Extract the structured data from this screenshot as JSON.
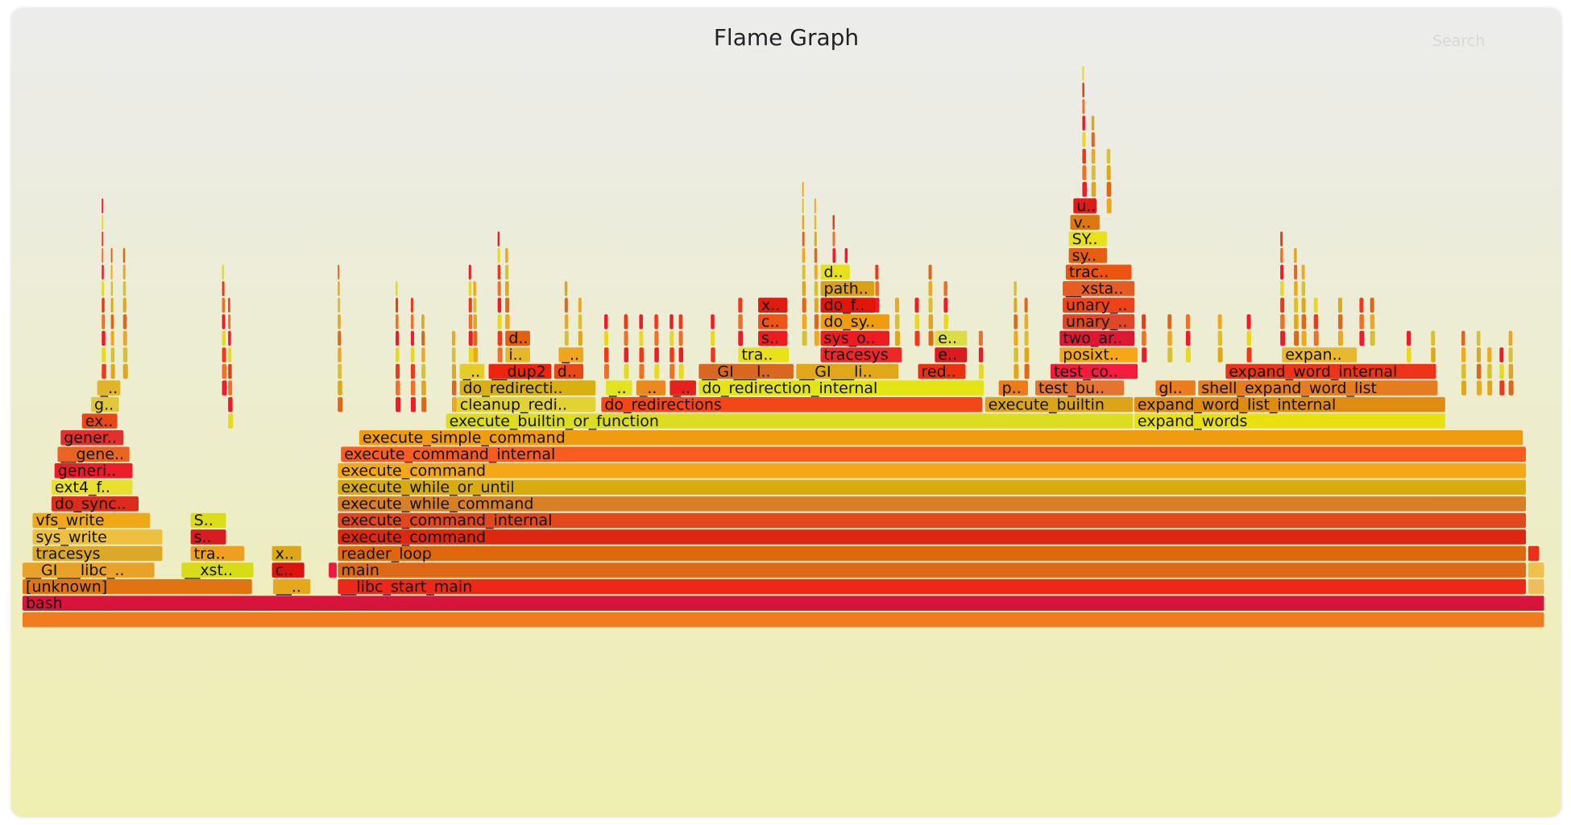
{
  "title": "Flame Graph",
  "search_label": "Search",
  "chart_data": {
    "type": "flamegraph",
    "frames": [
      {
        "name": "",
        "depth": 0,
        "start": 0,
        "width": 1,
        "color": "#ef7d20"
      },
      {
        "name": "bash",
        "depth": 1,
        "start": 0,
        "width": 1,
        "color": "#d8143c"
      },
      {
        "name": "[unknown]",
        "depth": 2,
        "start": 0.0,
        "width": 0.1514,
        "color": "#df7410"
      },
      {
        "name": "__..",
        "depth": 2,
        "start": 0.1645,
        "width": 0.0253,
        "color": "#e6a818"
      },
      {
        "name": "__libc_start_main",
        "depth": 2,
        "start": 0.2071,
        "width": 0.781,
        "color": "#ee2818"
      },
      {
        "name": "",
        "depth": 2,
        "start": 0.9888,
        "width": 0.0112,
        "color": "#eebe5c"
      },
      {
        "name": "__GI___libc_..",
        "depth": 3,
        "start": 0.0,
        "width": 0.0874,
        "color": "#e8a228"
      },
      {
        "name": "__xst..",
        "depth": 3,
        "start": 0.1044,
        "width": 0.048,
        "color": "#d8dc18"
      },
      {
        "name": "c..",
        "depth": 3,
        "start": 0.1638,
        "width": 0.022,
        "color": "#dc1410"
      },
      {
        "name": "",
        "depth": 3,
        "start": 0.2011,
        "width": 0.006,
        "color": "#ee1840"
      },
      {
        "name": "main",
        "depth": 3,
        "start": 0.2071,
        "width": 0.781,
        "color": "#dc6818"
      },
      {
        "name": "",
        "depth": 3,
        "start": 0.9888,
        "width": 0.0112,
        "color": "#eec04c"
      },
      {
        "name": "tracesys",
        "depth": 4,
        "start": 0.0066,
        "width": 0.086,
        "color": "#dca828"
      },
      {
        "name": "tra..",
        "depth": 4,
        "start": 0.1104,
        "width": 0.036,
        "color": "#eea020"
      },
      {
        "name": "x..",
        "depth": 4,
        "start": 0.1638,
        "width": 0.02,
        "color": "#dca818"
      },
      {
        "name": "reader_loop",
        "depth": 4,
        "start": 0.2071,
        "width": 0.781,
        "color": "#e0680c"
      },
      {
        "name": "",
        "depth": 4,
        "start": 0.9888,
        "width": 0.008,
        "color": "#ee3018"
      },
      {
        "name": "sys_write",
        "depth": 5,
        "start": 0.0066,
        "width": 0.086,
        "color": "#eec040"
      },
      {
        "name": "s..",
        "depth": 5,
        "start": 0.1104,
        "width": 0.024,
        "color": "#d81c20"
      },
      {
        "name": "execute_command",
        "depth": 5,
        "start": 0.2071,
        "width": 0.781,
        "color": "#dc2810"
      },
      {
        "name": "vfs_write",
        "depth": 6,
        "start": 0.0066,
        "width": 0.078,
        "color": "#eea818"
      },
      {
        "name": "S..",
        "depth": 6,
        "start": 0.1104,
        "width": 0.024,
        "color": "#dcdc18"
      },
      {
        "name": "execute_command_internal",
        "depth": 6,
        "start": 0.2071,
        "width": 0.781,
        "color": "#e24820"
      },
      {
        "name": "do_sync..",
        "depth": 7,
        "start": 0.019,
        "width": 0.058,
        "color": "#dc2c1c"
      },
      {
        "name": "execute_while_command",
        "depth": 7,
        "start": 0.2071,
        "width": 0.781,
        "color": "#d88028"
      },
      {
        "name": "ext4_f..",
        "depth": 8,
        "start": 0.019,
        "width": 0.054,
        "color": "#e8e030"
      },
      {
        "name": "execute_while_or_until",
        "depth": 8,
        "start": 0.2071,
        "width": 0.781,
        "color": "#d8ac10"
      },
      {
        "name": "generi..",
        "depth": 9,
        "start": 0.021,
        "width": 0.052,
        "color": "#ec1c28"
      },
      {
        "name": "execute_command",
        "depth": 9,
        "start": 0.2071,
        "width": 0.781,
        "color": "#f4a818"
      },
      {
        "name": "__gene..",
        "depth": 10,
        "start": 0.023,
        "width": 0.048,
        "color": "#e86420"
      },
      {
        "name": "execute_command_internal",
        "depth": 10,
        "start": 0.2091,
        "width": 0.779,
        "color": "#f85c20"
      },
      {
        "name": "gener..",
        "depth": 11,
        "start": 0.025,
        "width": 0.042,
        "color": "#e23030"
      },
      {
        "name": "execute_simple_command",
        "depth": 11,
        "start": 0.2211,
        "width": 0.765,
        "color": "#f09c10"
      },
      {
        "name": "ex..",
        "depth": 12,
        "start": 0.039,
        "width": 0.024,
        "color": "#e64818"
      },
      {
        "name": "execute_builtin_or_function",
        "depth": 12,
        "start": 0.2781,
        "width": 0.452,
        "color": "#dcdc20"
      },
      {
        "name": "expand_words",
        "depth": 12,
        "start": 0.7301,
        "width": 0.205,
        "color": "#e8e010"
      },
      {
        "name": "g..",
        "depth": 13,
        "start": 0.045,
        "width": 0.019,
        "color": "#e0c838"
      },
      {
        "name": "cleanup_redi..",
        "depth": 13,
        "start": 0.2851,
        "width": 0.092,
        "color": "#e2d234"
      },
      {
        "name": "do_redirections",
        "depth": 13,
        "start": 0.3801,
        "width": 0.251,
        "color": "#f44618"
      },
      {
        "name": "execute_builtin",
        "depth": 13,
        "start": 0.6321,
        "width": 0.098,
        "color": "#dca418"
      },
      {
        "name": "expand_word_list_internal",
        "depth": 13,
        "start": 0.7301,
        "width": 0.205,
        "color": "#e08c10"
      },
      {
        "name": "_..",
        "depth": 14,
        "start": 0.049,
        "width": 0.016,
        "color": "#e2b428"
      },
      {
        "name": "do_redirecti..",
        "depth": 14,
        "start": 0.2871,
        "width": 0.09,
        "color": "#d8b010"
      },
      {
        "name": "_..",
        "depth": 14,
        "start": 0.3831,
        "width": 0.018,
        "color": "#e2e420"
      },
      {
        "name": "_..",
        "depth": 14,
        "start": 0.4031,
        "width": 0.02,
        "color": "#eb8a1c"
      },
      {
        "name": "_..",
        "depth": 14,
        "start": 0.4251,
        "width": 0.018,
        "color": "#e8201c"
      },
      {
        "name": "do_redirection_internal",
        "depth": 14,
        "start": 0.4441,
        "width": 0.188,
        "color": "#e4e414"
      },
      {
        "name": "p..",
        "depth": 14,
        "start": 0.6411,
        "width": 0.02,
        "color": "#ec7c18"
      },
      {
        "name": "test_bu..",
        "depth": 14,
        "start": 0.6651,
        "width": 0.059,
        "color": "#e47430"
      },
      {
        "name": "gl..",
        "depth": 14,
        "start": 0.7441,
        "width": 0.027,
        "color": "#ec7c1c"
      },
      {
        "name": "shell_expand_word_list",
        "depth": 14,
        "start": 0.7721,
        "width": 0.158,
        "color": "#e67c20"
      },
      {
        "name": "_..",
        "depth": 15,
        "start": 0.2871,
        "width": 0.017,
        "color": "#e6cc28"
      },
      {
        "name": "__dup2",
        "depth": 15,
        "start": 0.3061,
        "width": 0.042,
        "color": "#ec2410"
      },
      {
        "name": "d..",
        "depth": 15,
        "start": 0.3491,
        "width": 0.02,
        "color": "#e84818"
      },
      {
        "name": "__GI___l..",
        "depth": 15,
        "start": 0.4441,
        "width": 0.063,
        "color": "#d86820"
      },
      {
        "name": "__GI___li..",
        "depth": 15,
        "start": 0.5081,
        "width": 0.068,
        "color": "#e0a818"
      },
      {
        "name": "red..",
        "depth": 15,
        "start": 0.5881,
        "width": 0.032,
        "color": "#ec3010"
      },
      {
        "name": "test_co..",
        "depth": 15,
        "start": 0.6751,
        "width": 0.058,
        "color": "#f41c3c"
      },
      {
        "name": "expand_word_internal",
        "depth": 15,
        "start": 0.7901,
        "width": 0.139,
        "color": "#ee3418"
      },
      {
        "name": "i..",
        "depth": 16,
        "start": 0.3171,
        "width": 0.017,
        "color": "#e6b828"
      },
      {
        "name": "_..",
        "depth": 16,
        "start": 0.3521,
        "width": 0.017,
        "color": "#eea620"
      },
      {
        "name": "tra..",
        "depth": 16,
        "start": 0.4701,
        "width": 0.034,
        "color": "#e8e018"
      },
      {
        "name": "tracesys",
        "depth": 16,
        "start": 0.5241,
        "width": 0.054,
        "color": "#ee2828"
      },
      {
        "name": "e..",
        "depth": 16,
        "start": 0.5991,
        "width": 0.022,
        "color": "#d81c20"
      },
      {
        "name": "posixt..",
        "depth": 16,
        "start": 0.6811,
        "width": 0.052,
        "color": "#f4a818"
      },
      {
        "name": "expan..",
        "depth": 16,
        "start": 0.8271,
        "width": 0.05,
        "color": "#e8b830"
      },
      {
        "name": "d..",
        "depth": 17,
        "start": 0.3171,
        "width": 0.017,
        "color": "#e46010"
      },
      {
        "name": "s..",
        "depth": 17,
        "start": 0.4831,
        "width": 0.02,
        "color": "#ec1c20"
      },
      {
        "name": "sys_o..",
        "depth": 17,
        "start": 0.5241,
        "width": 0.046,
        "color": "#ec1c20"
      },
      {
        "name": "e..",
        "depth": 17,
        "start": 0.5991,
        "width": 0.022,
        "color": "#dcdc44"
      },
      {
        "name": "two_ar..",
        "depth": 17,
        "start": 0.6811,
        "width": 0.05,
        "color": "#dc1834"
      },
      {
        "name": "c..",
        "depth": 18,
        "start": 0.4831,
        "width": 0.02,
        "color": "#ec5418"
      },
      {
        "name": "do_sy..",
        "depth": 18,
        "start": 0.5241,
        "width": 0.046,
        "color": "#f09c10"
      },
      {
        "name": "unary_..",
        "depth": 18,
        "start": 0.6831,
        "width": 0.048,
        "color": "#de4828"
      },
      {
        "name": "x..",
        "depth": 19,
        "start": 0.4831,
        "width": 0.02,
        "color": "#e01c10"
      },
      {
        "name": "do_f..",
        "depth": 19,
        "start": 0.5241,
        "width": 0.037,
        "color": "#e4140c"
      },
      {
        "name": "unary_..",
        "depth": 19,
        "start": 0.6831,
        "width": 0.048,
        "color": "#ec4418"
      },
      {
        "name": "path..",
        "depth": 20,
        "start": 0.5241,
        "width": 0.036,
        "color": "#dca018"
      },
      {
        "name": "__xsta..",
        "depth": 20,
        "start": 0.6831,
        "width": 0.048,
        "color": "#e65c24"
      },
      {
        "name": "d..",
        "depth": 21,
        "start": 0.5241,
        "width": 0.02,
        "color": "#e8e018"
      },
      {
        "name": "trac..",
        "depth": 21,
        "start": 0.6851,
        "width": 0.044,
        "color": "#ec5410"
      },
      {
        "name": "sy..",
        "depth": 22,
        "start": 0.6871,
        "width": 0.026,
        "color": "#e46010"
      },
      {
        "name": "SY..",
        "depth": 23,
        "start": 0.6871,
        "width": 0.026,
        "color": "#e8e018"
      },
      {
        "name": "v..",
        "depth": 24,
        "start": 0.6881,
        "width": 0.02,
        "color": "#dc7810"
      },
      {
        "name": "u..",
        "depth": 25,
        "start": 0.6901,
        "width": 0.016,
        "color": "#dc1c18"
      }
    ]
  }
}
